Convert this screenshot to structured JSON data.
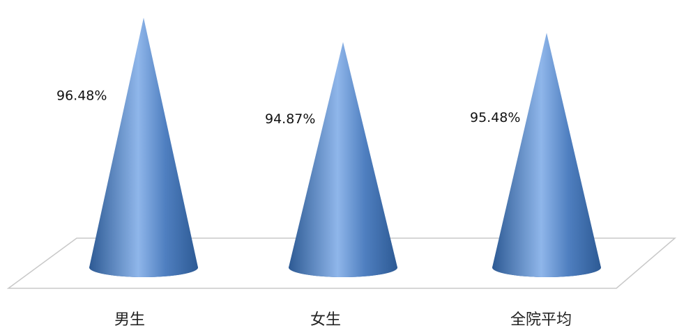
{
  "chart_data": {
    "type": "bar",
    "style": "3d-cone",
    "categories": [
      "男生",
      "女生",
      "全院平均"
    ],
    "values": [
      96.48,
      94.87,
      95.48
    ],
    "value_labels": [
      "96.48%",
      "94.87%",
      "95.48%"
    ],
    "title": "",
    "xlabel": "",
    "ylabel": "",
    "grid": false,
    "legend": "none"
  },
  "colors": {
    "cone_dark": "#2d5a94",
    "cone_mid": "#4f7fc0",
    "cone_light": "#8fb6ea",
    "floor_edge": "#c8c8c8"
  }
}
